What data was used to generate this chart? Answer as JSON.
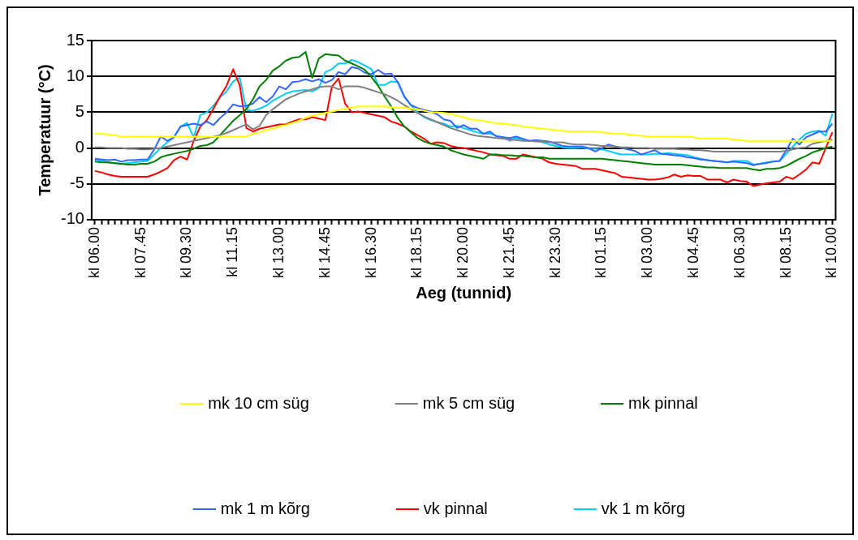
{
  "chart_data": {
    "type": "line",
    "xlabel": "Aeg (tunnid)",
    "ylabel": "Temperatuur (°C)",
    "categories": [
      "kl 06.00",
      null,
      null,
      null,
      null,
      null,
      null,
      "kl 07.45",
      null,
      null,
      null,
      null,
      null,
      null,
      "kl 09.30",
      null,
      null,
      null,
      null,
      null,
      null,
      "kl 11.15",
      null,
      null,
      null,
      null,
      null,
      null,
      "kl 13.00",
      null,
      null,
      null,
      null,
      null,
      null,
      "kl 14.45",
      null,
      null,
      null,
      null,
      null,
      null,
      "kl 16.30",
      null,
      null,
      null,
      null,
      null,
      null,
      "kl 18.15",
      null,
      null,
      null,
      null,
      null,
      null,
      "kl 20.00",
      null,
      null,
      null,
      null,
      null,
      null,
      "kl 21.45",
      null,
      null,
      null,
      null,
      null,
      null,
      "kl 23.30",
      null,
      null,
      null,
      null,
      null,
      null,
      "kl 01.15",
      null,
      null,
      null,
      null,
      null,
      null,
      "kl 03.00",
      null,
      null,
      null,
      null,
      null,
      null,
      "kl 04.45",
      null,
      null,
      null,
      null,
      null,
      null,
      "kl 06.30",
      null,
      null,
      null,
      null,
      null,
      null,
      "kl 08.15",
      null,
      null,
      null,
      null,
      null,
      null,
      "kl 10.00"
    ],
    "ylim": [
      -10,
      15
    ],
    "yticks": [
      -10,
      -5,
      0,
      5,
      10,
      15
    ],
    "grid": "y",
    "legend": "bottom",
    "marker": "none",
    "line_style": "solid",
    "series": [
      {
        "name": "mk 10 cm süg",
        "color": "#ffff00",
        "values": [
          2.0,
          2.0,
          1.9,
          1.8,
          1.6,
          1.6,
          1.6,
          1.6,
          1.6,
          1.6,
          1.6,
          1.6,
          1.6,
          1.6,
          1.6,
          1.6,
          1.6,
          1.6,
          1.6,
          1.6,
          1.6,
          1.6,
          1.6,
          1.6,
          2.0,
          2.2,
          2.5,
          2.7,
          3.0,
          3.2,
          3.5,
          3.8,
          4.2,
          4.5,
          4.7,
          4.9,
          5.1,
          5.3,
          5.5,
          5.6,
          5.8,
          5.8,
          5.8,
          5.8,
          5.8,
          5.7,
          5.6,
          5.6,
          5.5,
          5.4,
          5.2,
          5.0,
          5.0,
          4.9,
          4.8,
          4.5,
          4.3,
          4.0,
          3.9,
          3.8,
          3.6,
          3.5,
          3.4,
          3.3,
          3.2,
          3.0,
          2.9,
          2.8,
          2.7,
          2.6,
          2.5,
          2.4,
          2.3,
          2.3,
          2.3,
          2.3,
          2.3,
          2.2,
          2.1,
          2.0,
          2.0,
          1.9,
          1.8,
          1.7,
          1.6,
          1.6,
          1.6,
          1.6,
          1.6,
          1.6,
          1.6,
          1.5,
          1.3,
          1.3,
          1.3,
          1.3,
          1.3,
          1.2,
          1.1,
          1.0,
          1.0,
          1.0,
          1.0,
          1.0,
          1.0,
          1.0,
          1.0,
          1.0,
          1.0,
          1.0,
          1.0,
          1.0,
          1.0
        ]
      },
      {
        "name": "mk 5 cm süg",
        "color": "#808080",
        "values": [
          0.1,
          0.1,
          0.0,
          0.0,
          0.0,
          -0.1,
          -0.1,
          -0.2,
          -0.2,
          -0.1,
          0.0,
          0.2,
          0.4,
          0.6,
          0.8,
          1.0,
          1.2,
          1.4,
          1.6,
          1.8,
          2.1,
          2.5,
          2.9,
          3.3,
          2.6,
          3.1,
          4.6,
          5.4,
          6.1,
          6.8,
          7.2,
          7.6,
          7.9,
          8.2,
          8.5,
          8.6,
          8.6,
          8.2,
          8.6,
          8.6,
          8.6,
          8.4,
          8.1,
          7.8,
          7.5,
          7.1,
          6.6,
          6.0,
          5.4,
          4.9,
          4.4,
          4.0,
          3.6,
          3.2,
          2.8,
          2.5,
          2.2,
          1.9,
          1.7,
          1.6,
          1.5,
          1.4,
          1.3,
          1.2,
          1.1,
          1.0,
          1.0,
          0.9,
          0.9,
          0.8,
          0.8,
          0.8,
          0.6,
          0.5,
          0.5,
          0.5,
          0.4,
          0.3,
          0.3,
          0.2,
          0.1,
          0.1,
          0.0,
          0.0,
          0.0,
          -0.1,
          -0.1,
          -0.1,
          -0.1,
          -0.2,
          -0.2,
          -0.3,
          -0.3,
          -0.4,
          -0.5,
          -0.5,
          -0.5,
          -0.5,
          -0.5,
          -0.5,
          -0.5,
          -0.5,
          -0.5,
          -0.5,
          -0.5,
          -0.4,
          -0.2,
          0.0,
          0.1,
          0.6,
          0.8,
          1.0,
          1.2
        ]
      },
      {
        "name": "mk pinnal",
        "color": "#008000",
        "values": [
          -1.9,
          -2.0,
          -2.0,
          -2.1,
          -2.2,
          -2.3,
          -2.3,
          -2.2,
          -2.2,
          -1.9,
          -1.3,
          -1.0,
          -0.8,
          -0.6,
          -0.4,
          -0.1,
          0.3,
          0.4,
          0.8,
          1.8,
          2.8,
          3.8,
          4.6,
          5.4,
          6.8,
          8.6,
          9.5,
          10.8,
          11.4,
          12.2,
          12.6,
          12.7,
          13.4,
          9.8,
          12.5,
          13.1,
          13.0,
          12.9,
          12.2,
          11.8,
          11.4,
          10.9,
          9.9,
          8.7,
          7.2,
          5.8,
          4.2,
          3.0,
          2.2,
          1.4,
          0.9,
          0.6,
          0.4,
          0.2,
          -0.3,
          -0.6,
          -0.9,
          -1.1,
          -1.3,
          -1.5,
          -0.9,
          -0.9,
          -1.0,
          -1.0,
          -1.1,
          -1.1,
          -1.2,
          -1.3,
          -1.3,
          -1.5,
          -1.5,
          -1.5,
          -1.5,
          -1.5,
          -1.5,
          -1.5,
          -1.5,
          -1.5,
          -1.6,
          -1.7,
          -1.8,
          -1.9,
          -2.0,
          -2.1,
          -2.2,
          -2.3,
          -2.3,
          -2.3,
          -2.3,
          -2.3,
          -2.4,
          -2.5,
          -2.6,
          -2.7,
          -2.7,
          -2.8,
          -2.8,
          -2.8,
          -2.8,
          -2.8,
          -3.0,
          -3.1,
          -2.9,
          -2.9,
          -2.8,
          -2.5,
          -2.0,
          -1.5,
          -1.1,
          -0.6,
          -0.3,
          0.0,
          0.2
        ]
      },
      {
        "name": "mk 1 m kõrg",
        "color": "#3366ff",
        "values": [
          -1.5,
          -1.6,
          -1.7,
          -1.6,
          -1.9,
          -1.7,
          -1.7,
          -1.6,
          -1.6,
          -0.2,
          1.6,
          1.0,
          1.5,
          3.0,
          3.2,
          3.4,
          3.2,
          3.7,
          3.2,
          4.2,
          5.0,
          6.1,
          5.8,
          5.9,
          6.2,
          7.1,
          6.4,
          7.2,
          8.6,
          8.2,
          9.2,
          9.3,
          9.6,
          9.3,
          9.6,
          9.1,
          9.5,
          10.6,
          10.3,
          11.3,
          11.1,
          10.5,
          10.3,
          10.9,
          10.3,
          10.4,
          9.2,
          7.2,
          6.0,
          5.6,
          5.3,
          5.1,
          4.7,
          4.0,
          3.8,
          2.8,
          3.2,
          2.7,
          2.7,
          2.0,
          2.3,
          1.6,
          1.5,
          1.4,
          1.6,
          1.3,
          1.0,
          1.1,
          1.0,
          0.9,
          0.6,
          0.3,
          0.2,
          0.2,
          0.2,
          0.0,
          -0.5,
          0.0,
          0.5,
          0.2,
          0.0,
          -0.2,
          -0.4,
          -0.9,
          -0.6,
          -0.3,
          -0.8,
          -0.9,
          -1.0,
          -1.1,
          -1.3,
          -1.4,
          -1.6,
          -1.7,
          -1.8,
          -1.9,
          -2.0,
          -1.9,
          -2.0,
          -2.1,
          -2.4,
          -2.2,
          -2.1,
          -1.9,
          -1.8,
          -0.3,
          1.3,
          0.5,
          1.5,
          1.9,
          2.3,
          2.3,
          3.4
        ]
      },
      {
        "name": "vk pinnal",
        "color": "#ff0000",
        "values": [
          -3.2,
          -3.4,
          -3.7,
          -3.9,
          -4.0,
          -4.0,
          -4.0,
          -4.0,
          -4.0,
          -3.7,
          -3.3,
          -2.8,
          -1.7,
          -1.2,
          -1.6,
          1.0,
          3.0,
          3.9,
          5.5,
          7.2,
          8.7,
          11.0,
          8.7,
          2.8,
          2.3,
          2.7,
          2.9,
          3.1,
          3.3,
          3.3,
          3.7,
          4.0,
          4.0,
          4.3,
          4.1,
          3.9,
          8.6,
          9.7,
          6.2,
          5.0,
          5.1,
          4.9,
          4.7,
          4.5,
          4.3,
          3.7,
          3.4,
          3.0,
          2.3,
          1.8,
          1.3,
          0.6,
          0.8,
          0.7,
          0.3,
          0.1,
          0.0,
          -0.2,
          -0.4,
          -0.6,
          -0.9,
          -1.0,
          -1.1,
          -1.5,
          -1.5,
          -0.9,
          -1.1,
          -1.3,
          -1.5,
          -2.0,
          -2.2,
          -2.3,
          -2.4,
          -2.5,
          -2.9,
          -2.9,
          -2.9,
          -3.1,
          -3.3,
          -3.5,
          -4.0,
          -4.1,
          -4.2,
          -4.3,
          -4.4,
          -4.4,
          -4.3,
          -4.1,
          -3.7,
          -4.0,
          -3.8,
          -3.9,
          -3.9,
          -4.4,
          -4.4,
          -4.4,
          -4.8,
          -4.4,
          -4.6,
          -4.7,
          -5.3,
          -5.1,
          -4.9,
          -4.8,
          -4.7,
          -4.0,
          -4.3,
          -3.7,
          -3.0,
          -2.0,
          -2.2,
          0.0,
          2.2
        ]
      },
      {
        "name": "vk 1 m kõrg",
        "color": "#00ccff",
        "values": [
          -1.6,
          -1.8,
          -2.0,
          -2.1,
          -2.2,
          -2.1,
          -2.0,
          -1.9,
          -1.8,
          -0.9,
          0.0,
          0.8,
          1.5,
          3.0,
          3.5,
          1.5,
          4.6,
          5.0,
          5.9,
          7.1,
          7.9,
          9.3,
          9.8,
          5.3,
          5.2,
          5.5,
          5.9,
          6.6,
          7.1,
          7.6,
          7.9,
          8.0,
          8.1,
          7.9,
          8.4,
          10.6,
          11.0,
          11.8,
          11.8,
          12.3,
          12.0,
          11.5,
          11.0,
          8.8,
          8.8,
          9.3,
          9.2,
          7.1,
          6.0,
          5.0,
          4.3,
          3.9,
          3.6,
          3.4,
          3.0,
          3.1,
          2.8,
          2.5,
          2.2,
          2.0,
          2.0,
          1.7,
          1.5,
          1.0,
          1.4,
          1.2,
          1.0,
          1.0,
          0.8,
          0.5,
          0.3,
          0.1,
          0.0,
          0.0,
          0.1,
          -0.1,
          -0.1,
          -0.2,
          -0.4,
          -0.7,
          -0.9,
          -0.9,
          -0.9,
          -0.9,
          -0.9,
          -0.8,
          -0.8,
          -0.7,
          -0.8,
          -0.9,
          -1.0,
          -1.3,
          -1.5,
          -1.7,
          -1.8,
          -1.9,
          -2.0,
          -1.8,
          -1.8,
          -1.8,
          -2.3,
          -2.2,
          -2.0,
          -1.9,
          -1.8,
          -0.8,
          0.2,
          1.2,
          2.0,
          2.3,
          2.4,
          1.7,
          4.8
        ]
      }
    ]
  }
}
